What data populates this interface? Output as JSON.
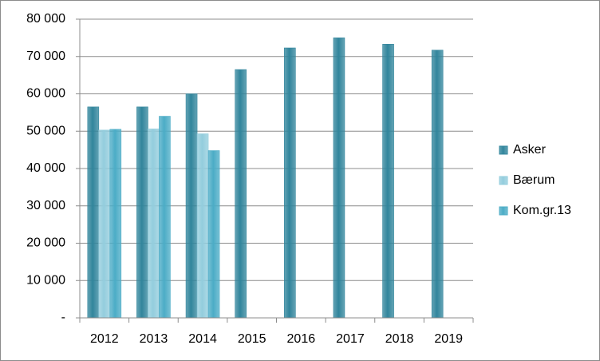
{
  "chart_data": {
    "type": "bar",
    "categories": [
      "2012",
      "2013",
      "2014",
      "2015",
      "2016",
      "2017",
      "2018",
      "2019"
    ],
    "series": [
      {
        "name": "Asker",
        "color": "#31859c",
        "values": [
          56500,
          56500,
          60000,
          66500,
          72300,
          75000,
          73300,
          71700
        ]
      },
      {
        "name": "Bærum",
        "color": "#93cddd",
        "values": [
          50300,
          50600,
          49300,
          null,
          null,
          null,
          null,
          null
        ]
      },
      {
        "name": "Kom.gr.13",
        "color": "#4bacc6",
        "values": [
          50500,
          54000,
          44800,
          null,
          null,
          null,
          null,
          null
        ]
      }
    ],
    "ylim": [
      0,
      80000
    ],
    "yticks": [
      {
        "value": 0,
        "label": "-"
      },
      {
        "value": 10000,
        "label": "10 000"
      },
      {
        "value": 20000,
        "label": "20 000"
      },
      {
        "value": 30000,
        "label": "30 000"
      },
      {
        "value": 40000,
        "label": "40 000"
      },
      {
        "value": 50000,
        "label": "50 000"
      },
      {
        "value": 60000,
        "label": "60 000"
      },
      {
        "value": 70000,
        "label": "70 000"
      },
      {
        "value": 80000,
        "label": "80 000"
      }
    ],
    "grid": true,
    "legend": "right"
  }
}
